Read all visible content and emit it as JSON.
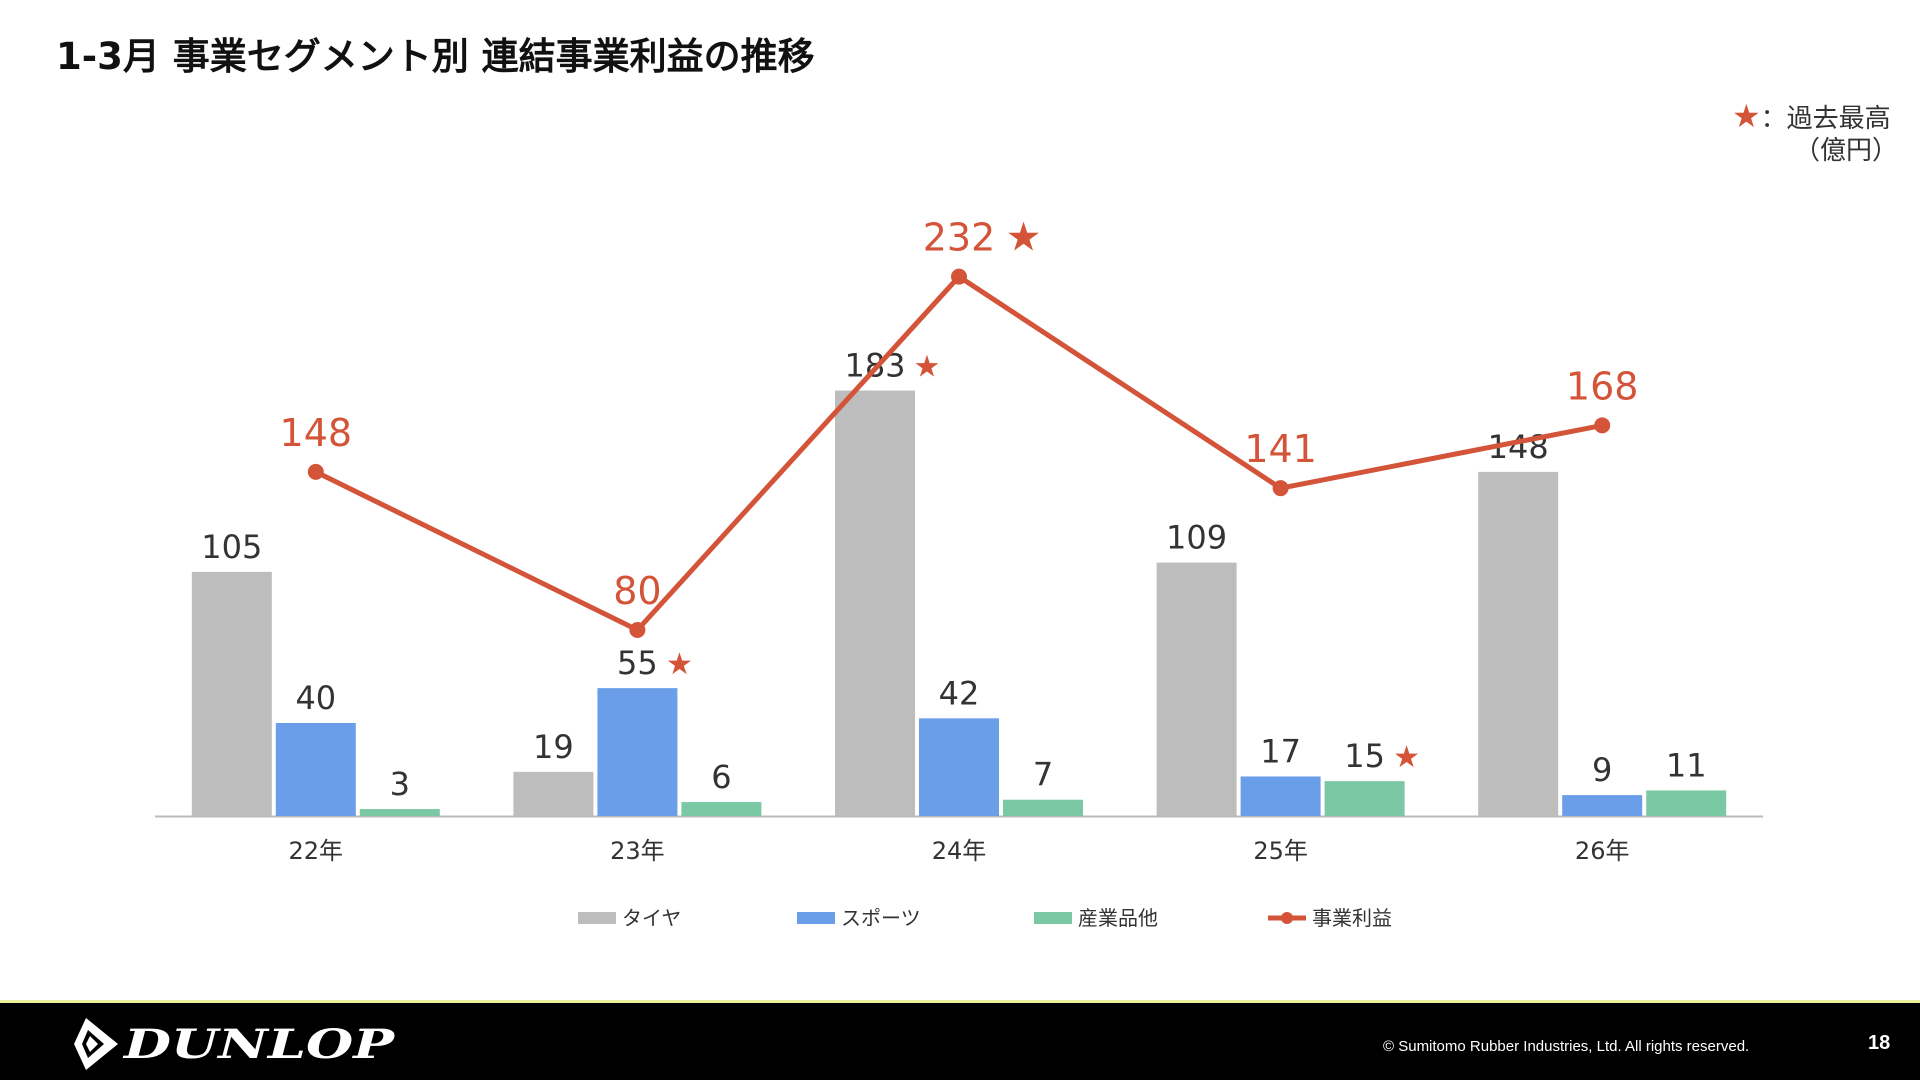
{
  "slide": {
    "title": "1-3月 事業セグメント別 連結事業利益の推移",
    "note_star": "★",
    "note_label": "：過去最高",
    "unit": "（億円）",
    "page_number": "18",
    "copyright": "© Sumitomo Rubber Industries, Ltd. All rights reserved.",
    "logo_text": "DUNLOP"
  },
  "colors": {
    "tire": "#bdbdbd",
    "sports": "#6b9ee8",
    "industrial": "#7bc9a4",
    "profit": "#d35438",
    "axis": "#bbbbbb",
    "text": "#333333"
  },
  "chart_data": {
    "type": "bar",
    "categories": [
      "22年",
      "23年",
      "24年",
      "25年",
      "26年"
    ],
    "series": [
      {
        "name": "タイヤ",
        "type": "bar",
        "values": [
          105,
          19,
          183,
          109,
          148
        ],
        "record": [
          false,
          false,
          true,
          false,
          false
        ]
      },
      {
        "name": "スポーツ",
        "type": "bar",
        "values": [
          40,
          55,
          42,
          17,
          9
        ],
        "record": [
          false,
          true,
          false,
          false,
          false
        ]
      },
      {
        "name": "産業品他",
        "type": "bar",
        "values": [
          3,
          6,
          7,
          15,
          11
        ],
        "record": [
          false,
          false,
          false,
          true,
          false
        ]
      },
      {
        "name": "事業利益",
        "type": "line",
        "values": [
          148,
          80,
          232,
          141,
          168
        ],
        "record": [
          false,
          false,
          true,
          false,
          false
        ]
      }
    ],
    "ylim": [
      0,
      240
    ],
    "grid": false,
    "legend": "bottom"
  }
}
